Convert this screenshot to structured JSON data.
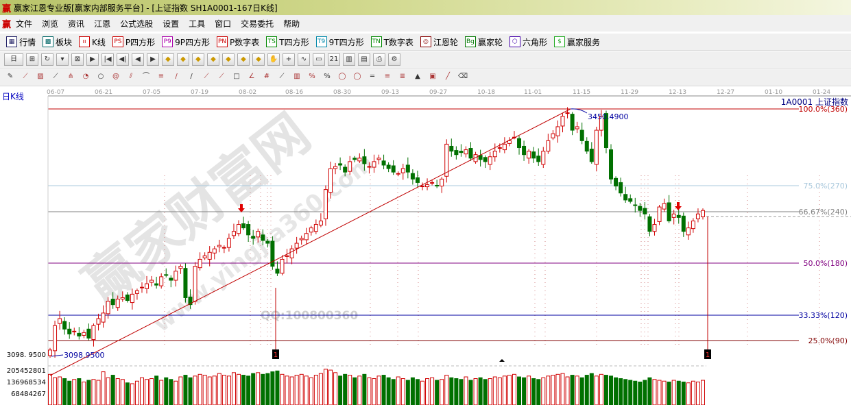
{
  "window": {
    "title": "赢家江恩专业版[赢家内部服务平台] - [上证指数  SH1A0001-167日K线]",
    "logo": "赢"
  },
  "menu": [
    "文件",
    "浏览",
    "资讯",
    "江恩",
    "公式选股",
    "设置",
    "工具",
    "窗口",
    "交易委托",
    "帮助"
  ],
  "toolbar1": [
    {
      "icon": "grid-icon",
      "glyph": "▦",
      "label": "行情"
    },
    {
      "icon": "blocks-icon",
      "glyph": "▩",
      "label": "板块"
    },
    {
      "icon": "candles-icon",
      "glyph": "ıı",
      "label": "K线"
    },
    {
      "icon": "ps-icon",
      "glyph": "PS",
      "label": "P四方形"
    },
    {
      "icon": "p9-icon",
      "glyph": "P9",
      "label": "9P四方形"
    },
    {
      "icon": "pn-icon",
      "glyph": "PN",
      "label": "P数字表"
    },
    {
      "icon": "ts-icon",
      "glyph": "TS",
      "label": "T四方形"
    },
    {
      "icon": "t9-icon",
      "glyph": "T9",
      "label": "9T四方形"
    },
    {
      "icon": "tn-icon",
      "glyph": "TN",
      "label": "T数字表"
    },
    {
      "icon": "gann-wheel-icon",
      "glyph": "◎",
      "label": "江恩轮"
    },
    {
      "icon": "big-wheel-icon",
      "glyph": "Bg",
      "label": "赢家轮"
    },
    {
      "icon": "hexagon-icon",
      "glyph": "⬡",
      "label": "六角形"
    },
    {
      "icon": "dollar-icon",
      "glyph": "$",
      "label": "赢家服务"
    }
  ],
  "toolbar2": {
    "period": "日",
    "icons": [
      "period-dropdown-icon",
      "zoom-icon",
      "refresh-icon",
      "dropdown-icon",
      "chart-type-icon",
      "play-icon",
      "first-icon",
      "prev-icon",
      "back-icon",
      "forward-icon",
      "up-icon",
      "down-icon",
      "expand-icon",
      "shrink-icon",
      "diamond-icon",
      "diamond2-icon",
      "diamond3-icon",
      "hand-icon",
      "crosshair-icon",
      "wave-icon",
      "rect-icon",
      "calendar-icon",
      "table-icon",
      "report-icon",
      "print-icon",
      "settings-icon"
    ],
    "calendar_label": "21"
  },
  "toolbar3": {
    "icons": [
      "pencil-icon",
      "gann-fan-icon",
      "gann-box-icon",
      "gann-angle-icon",
      "fork-icon",
      "cycle-icon",
      "circle-icon",
      "spiral-icon",
      "rays-icon",
      "arc-icon",
      "fibo-icon",
      "channel-icon",
      "line-icon",
      "ray-icon",
      "trend-icon",
      "square-icon",
      "angle-icon",
      "grid-icon",
      "fan-icon",
      "stats-icon",
      "percent-icon",
      "percent2-icon",
      "ellipse-icon",
      "ellipse2-icon",
      "level-icon",
      "level2-icon",
      "level3-icon",
      "gain-icon",
      "box-icon",
      "line2-icon",
      "eraser-icon"
    ]
  },
  "chart": {
    "period_label": "日K线",
    "symbol": "1A0001  上证指数",
    "dates": [
      "06-07",
      "06-21",
      "07-05",
      "07-19",
      "08-02",
      "08-16",
      "08-30",
      "09-13",
      "09-27",
      "10-18",
      "11-01",
      "11-15",
      "11-29",
      "12-13",
      "12-27",
      "01-10",
      "01-24"
    ],
    "high_label": "3450.4900",
    "low_label": "3098.9500",
    "low_axis_label": "3098. 9500",
    "volume_axis": [
      "205452801",
      "136968534",
      "68484267"
    ],
    "levels": [
      {
        "label": "100.0%(360)",
        "color": "#c00000"
      },
      {
        "label": "75.0%(270)",
        "color": "#a8c8dc"
      },
      {
        "label": "66.67%(240)",
        "color": "#808080"
      },
      {
        "label": "50.0%(180)",
        "color": "#800080"
      },
      {
        "label": "33.33%(120)",
        "color": "#0000a0"
      },
      {
        "label": "25.0%(90)",
        "color": "#800000"
      }
    ],
    "markers": [
      "1",
      "1"
    ],
    "watermarks": [
      "赢家财富网",
      "www.yingjia360.com",
      "QQ:100800360"
    ],
    "colors": {
      "up": "#d00000",
      "down": "#007000"
    }
  },
  "chart_data": {
    "type": "candlestick",
    "ylim": [
      3098.95,
      3450.49
    ],
    "closes": [
      3105,
      3140,
      3150,
      3135,
      3128,
      3132,
      3125,
      3130,
      3122,
      3140,
      3150,
      3158,
      3175,
      3170,
      3178,
      3180,
      3176,
      3185,
      3190,
      3195,
      3200,
      3205,
      3198,
      3210,
      3212,
      3205,
      3218,
      3225,
      3180,
      3170,
      3225,
      3235,
      3240,
      3245,
      3250,
      3255,
      3252,
      3265,
      3275,
      3285,
      3280,
      3270,
      3265,
      3275,
      3262,
      3258,
      3225,
      3215,
      3235,
      3240,
      3250,
      3258,
      3265,
      3272,
      3280,
      3285,
      3290,
      3335,
      3365,
      3368,
      3370,
      3360,
      3375,
      3378,
      3380,
      3372,
      3368,
      3375,
      3380,
      3370,
      3365,
      3360,
      3358,
      3365,
      3360,
      3350,
      3345,
      3340,
      3342,
      3345,
      3340,
      3350,
      3400,
      3390,
      3385,
      3388,
      3392,
      3380,
      3385,
      3378,
      3375,
      3382,
      3390,
      3395,
      3400,
      3405,
      3410,
      3395,
      3385,
      3390,
      3380,
      3375,
      3390,
      3405,
      3415,
      3425,
      3440,
      3445,
      3420,
      3425,
      3405,
      3390,
      3375,
      3420,
      3440,
      3395,
      3350,
      3340,
      3330,
      3320,
      3318,
      3312,
      3305,
      3300,
      3275,
      3285,
      3310,
      3315,
      3290,
      3300,
      3295,
      3275,
      3280,
      3290,
      3300,
      3305
    ],
    "volumes": [
      180000000.0,
      160000000.0,
      165000000.0,
      155000000.0,
      140000000.0,
      150000000.0,
      155000000.0,
      135000000.0,
      145000000.0,
      150000000.0,
      145000000.0,
      195000000.0,
      160000000.0,
      175000000.0,
      155000000.0,
      150000000.0,
      130000000.0,
      125000000.0,
      140000000.0,
      160000000.0,
      150000000.0,
      155000000.0,
      170000000.0,
      145000000.0,
      160000000.0,
      150000000.0,
      140000000.0,
      165000000.0,
      175000000.0,
      160000000.0,
      170000000.0,
      180000000.0,
      175000000.0,
      165000000.0,
      170000000.0,
      185000000.0,
      175000000.0,
      170000000.0,
      190000000.0,
      180000000.0,
      175000000.0,
      170000000.0,
      185000000.0,
      190000000.0,
      180000000.0,
      185000000.0,
      195000000.0,
      200000000.0,
      180000000.0,
      170000000.0,
      165000000.0,
      175000000.0,
      180000000.0,
      170000000.0,
      160000000.0,
      175000000.0,
      185000000.0,
      210000000.0,
      205000000.0,
      190000000.0,
      170000000.0,
      180000000.0,
      175000000.0,
      160000000.0,
      170000000.0,
      180000000.0,
      160000000.0,
      155000000.0,
      170000000.0,
      175000000.0,
      160000000.0,
      150000000.0,
      165000000.0,
      155000000.0,
      145000000.0,
      160000000.0,
      150000000.0,
      140000000.0,
      155000000.0,
      160000000.0,
      145000000.0,
      150000000.0,
      175000000.0,
      160000000.0,
      155000000.0,
      150000000.0,
      165000000.0,
      145000000.0,
      155000000.0,
      160000000.0,
      150000000.0,
      155000000.0,
      165000000.0,
      160000000.0,
      170000000.0,
      175000000.0,
      180000000.0,
      165000000.0,
      160000000.0,
      170000000.0,
      155000000.0,
      150000000.0,
      160000000.0,
      170000000.0,
      175000000.0,
      180000000.0,
      185000000.0,
      165000000.0,
      175000000.0,
      170000000.0,
      160000000.0,
      175000000.0,
      185000000.0,
      170000000.0,
      180000000.0,
      175000000.0,
      170000000.0,
      160000000.0,
      155000000.0,
      150000000.0,
      145000000.0,
      140000000.0,
      135000000.0,
      145000000.0,
      160000000.0,
      150000000.0,
      145000000.0,
      140000000.0,
      135000000.0,
      145000000.0,
      140000000.0,
      135000000.0,
      130000000.0,
      140000000.0,
      135000000.0,
      145000000.0
    ]
  }
}
